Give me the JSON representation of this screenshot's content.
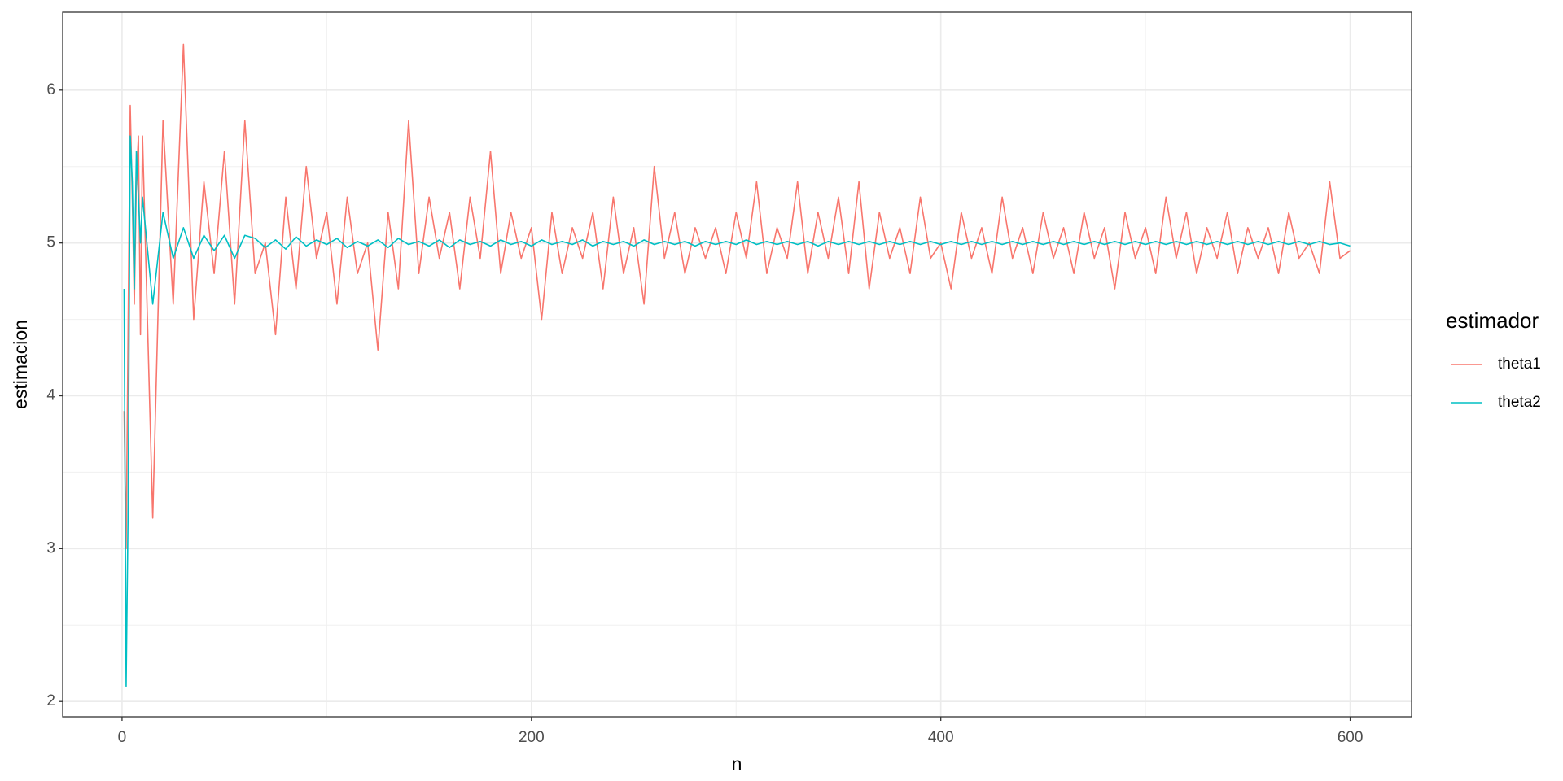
{
  "chart_data": {
    "type": "line",
    "x_label": "n",
    "y_label": "estimacion",
    "legend_title": "estimador",
    "x": [
      1,
      2,
      3,
      4,
      5,
      6,
      7,
      8,
      9,
      10,
      15,
      20,
      25,
      30,
      35,
      40,
      45,
      50,
      55,
      60,
      65,
      70,
      75,
      80,
      85,
      90,
      95,
      100,
      105,
      110,
      115,
      120,
      125,
      130,
      135,
      140,
      145,
      150,
      155,
      160,
      165,
      170,
      175,
      180,
      185,
      190,
      195,
      200,
      205,
      210,
      215,
      220,
      225,
      230,
      235,
      240,
      245,
      250,
      255,
      260,
      265,
      270,
      275,
      280,
      285,
      290,
      295,
      300,
      305,
      310,
      315,
      320,
      325,
      330,
      335,
      340,
      345,
      350,
      355,
      360,
      365,
      370,
      375,
      380,
      385,
      390,
      395,
      400,
      405,
      410,
      415,
      420,
      425,
      430,
      435,
      440,
      445,
      450,
      455,
      460,
      465,
      470,
      475,
      480,
      485,
      490,
      495,
      500,
      505,
      510,
      515,
      520,
      525,
      530,
      535,
      540,
      545,
      550,
      555,
      560,
      565,
      570,
      575,
      580,
      585,
      590,
      595,
      600
    ],
    "series": [
      {
        "name": "theta1",
        "color": "#F8766D",
        "values": [
          3.9,
          3.0,
          4.5,
          5.9,
          5.3,
          4.6,
          5.4,
          5.7,
          4.4,
          5.7,
          3.2,
          5.8,
          4.6,
          6.3,
          4.5,
          5.4,
          4.8,
          5.6,
          4.6,
          5.8,
          4.8,
          5.0,
          4.4,
          5.3,
          4.7,
          5.5,
          4.9,
          5.2,
          4.6,
          5.3,
          4.8,
          5.0,
          4.3,
          5.2,
          4.7,
          5.8,
          4.8,
          5.3,
          4.9,
          5.2,
          4.7,
          5.3,
          4.9,
          5.6,
          4.8,
          5.2,
          4.9,
          5.1,
          4.5,
          5.2,
          4.8,
          5.1,
          4.9,
          5.2,
          4.7,
          5.3,
          4.8,
          5.1,
          4.6,
          5.5,
          4.9,
          5.2,
          4.8,
          5.1,
          4.9,
          5.1,
          4.8,
          5.2,
          4.9,
          5.4,
          4.8,
          5.1,
          4.9,
          5.4,
          4.8,
          5.2,
          4.9,
          5.3,
          4.8,
          5.4,
          4.7,
          5.2,
          4.9,
          5.1,
          4.8,
          5.3,
          4.9,
          5.0,
          4.7,
          5.2,
          4.9,
          5.1,
          4.8,
          5.3,
          4.9,
          5.1,
          4.8,
          5.2,
          4.9,
          5.1,
          4.8,
          5.2,
          4.9,
          5.1,
          4.7,
          5.2,
          4.9,
          5.1,
          4.8,
          5.3,
          4.9,
          5.2,
          4.8,
          5.1,
          4.9,
          5.2,
          4.8,
          5.1,
          4.9,
          5.1,
          4.8,
          5.2,
          4.9,
          5.0,
          4.8,
          5.4,
          4.9,
          4.95
        ]
      },
      {
        "name": "theta2",
        "color": "#00BFC4",
        "values": [
          4.7,
          2.1,
          3.3,
          5.7,
          5.4,
          4.7,
          5.6,
          5.3,
          5.0,
          5.3,
          4.6,
          5.2,
          4.9,
          5.1,
          4.9,
          5.05,
          4.95,
          5.05,
          4.9,
          5.05,
          5.03,
          4.97,
          5.02,
          4.96,
          5.04,
          4.98,
          5.02,
          4.99,
          5.03,
          4.97,
          5.01,
          4.98,
          5.02,
          4.97,
          5.03,
          4.99,
          5.01,
          4.98,
          5.02,
          4.97,
          5.02,
          4.99,
          5.01,
          4.98,
          5.02,
          4.99,
          5.01,
          4.98,
          5.02,
          4.99,
          5.01,
          4.99,
          5.02,
          4.98,
          5.01,
          4.99,
          5.01,
          4.98,
          5.02,
          4.99,
          5.01,
          4.99,
          5.01,
          4.98,
          5.01,
          4.99,
          5.01,
          4.99,
          5.02,
          4.99,
          5.01,
          4.99,
          5.01,
          4.99,
          5.01,
          4.98,
          5.01,
          4.99,
          5.01,
          4.99,
          5.01,
          4.99,
          5.01,
          4.99,
          5.01,
          4.99,
          5.01,
          4.99,
          5.01,
          4.99,
          5.01,
          4.99,
          5.01,
          4.99,
          5.01,
          4.99,
          5.01,
          4.99,
          5.01,
          4.99,
          5.01,
          4.99,
          5.01,
          4.99,
          5.01,
          4.99,
          5.01,
          4.99,
          5.01,
          4.99,
          5.01,
          4.99,
          5.01,
          4.99,
          5.01,
          4.99,
          5.01,
          4.99,
          5.01,
          4.99,
          5.01,
          4.99,
          5.01,
          4.99,
          5.01,
          4.99,
          5.0,
          4.98
        ]
      }
    ],
    "xlim": [
      -29,
      630
    ],
    "xticks": [
      0,
      200,
      400,
      600
    ],
    "ylim": [
      1.9,
      6.51
    ],
    "yticks": [
      2,
      3,
      4,
      5,
      6
    ],
    "grid": true,
    "legend": "right"
  }
}
